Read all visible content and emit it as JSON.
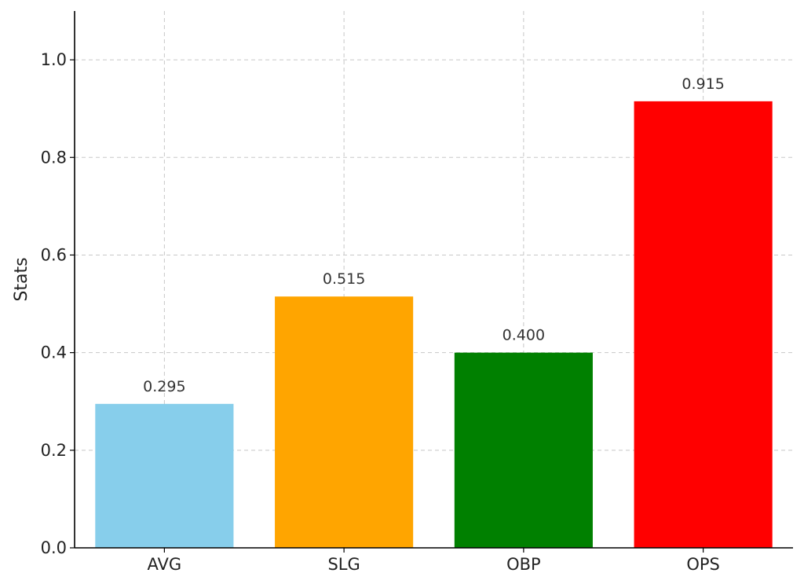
{
  "chart_data": {
    "type": "bar",
    "title": "",
    "xlabel": "",
    "ylabel": "Stats",
    "categories": [
      "AVG",
      "SLG",
      "OBP",
      "OPS"
    ],
    "values": [
      0.295,
      0.515,
      0.4,
      0.915
    ],
    "value_labels": [
      "0.295",
      "0.515",
      "0.400",
      "0.915"
    ],
    "colors": [
      "#87CEEB",
      "#FFA500",
      "#008000",
      "#FF0000"
    ],
    "ylim": [
      0,
      1.1
    ],
    "yticks": [
      0.0,
      0.2,
      0.4,
      0.6,
      0.8,
      1.0
    ],
    "ytick_labels": [
      "0.0",
      "0.2",
      "0.4",
      "0.6",
      "0.8",
      "1.0"
    ],
    "grid": true,
    "legend": "none"
  }
}
